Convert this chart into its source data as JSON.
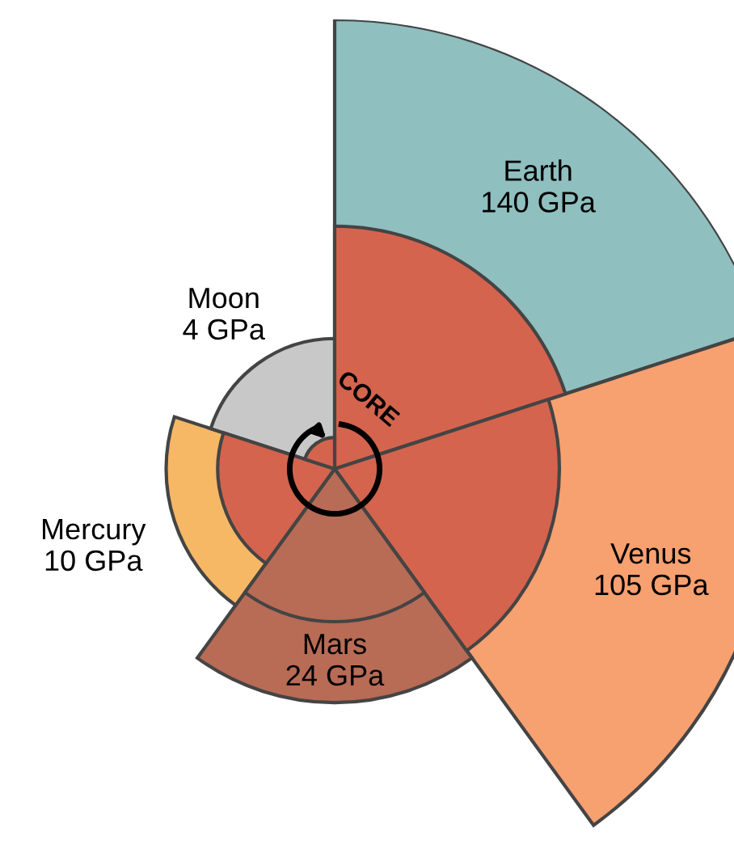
{
  "chart_data": {
    "type": "other",
    "categories": [
      "Earth",
      "Venus",
      "Mars",
      "Mercury",
      "Moon"
    ],
    "values": [
      140,
      105,
      24,
      10,
      4
    ],
    "value_labels": [
      "140 GPa",
      "105 GPa",
      "24 GPa",
      "10 GPa",
      "4 GPa"
    ],
    "colors": [
      "#8fbfbf",
      "#f7a070",
      "#b86b55",
      "#f6b865",
      "#c8c8c8"
    ],
    "annotations": [
      "CORE"
    ]
  }
}
